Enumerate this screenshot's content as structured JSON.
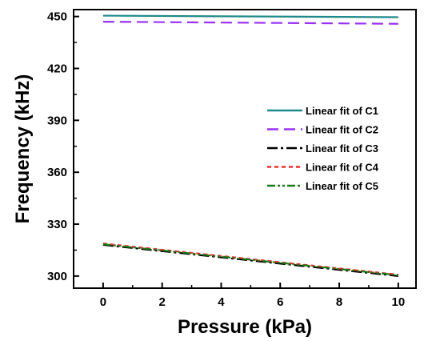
{
  "chart_data": {
    "type": "line",
    "title": "",
    "xlabel": "Pressure (kPa)",
    "ylabel": "Frequency (kHz)",
    "xlim": [
      -1,
      10.6
    ],
    "ylim": [
      293,
      454
    ],
    "xticks": [
      0,
      2,
      4,
      6,
      8,
      10
    ],
    "yticks": [
      300,
      330,
      360,
      390,
      420,
      450
    ],
    "grid": false,
    "legend_position": "right",
    "series": [
      {
        "name": "Linear fit of C1",
        "color": "#1f8a8a",
        "dash": "solid",
        "x": [
          0,
          10
        ],
        "y": [
          450.5,
          449.6
        ]
      },
      {
        "name": "Linear fit of C2",
        "color": "#9b30ff",
        "dash": "dash",
        "x": [
          0,
          10
        ],
        "y": [
          447.0,
          445.8
        ]
      },
      {
        "name": "Linear fit of C3",
        "color": "#000000",
        "dash": "dashdot",
        "x": [
          0,
          10
        ],
        "y": [
          318.0,
          300.0
        ]
      },
      {
        "name": "Linear fit of C4",
        "color": "#ff2a2a",
        "dash": "dot",
        "x": [
          0,
          10
        ],
        "y": [
          318.8,
          300.8
        ]
      },
      {
        "name": "Linear fit of C5",
        "color": "#1a7a1a",
        "dash": "dashdotdot",
        "x": [
          0,
          10
        ],
        "y": [
          318.4,
          300.5
        ]
      }
    ]
  }
}
